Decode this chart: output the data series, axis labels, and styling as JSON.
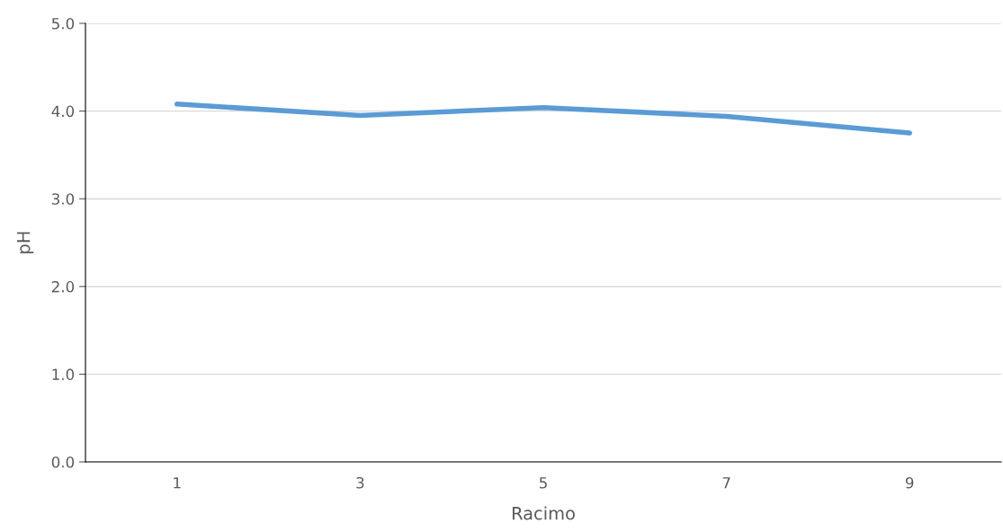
{
  "chart_data": {
    "type": "line",
    "xlabel": "Racimo",
    "ylabel": "pH",
    "categories": [
      "1",
      "3",
      "5",
      "7",
      "9"
    ],
    "series": [
      {
        "color": "#5b9bd5",
        "values": [
          4.08,
          3.95,
          4.04,
          3.94,
          3.75
        ]
      }
    ],
    "ylim": [
      0,
      5
    ],
    "yticks": [
      {
        "value": 0,
        "label": "0.0"
      },
      {
        "value": 1,
        "label": "1.0"
      },
      {
        "value": 2,
        "label": "2.0"
      },
      {
        "value": 3,
        "label": "3.0"
      },
      {
        "value": 4,
        "label": "4.0"
      },
      {
        "value": 5,
        "label": "5.0"
      }
    ],
    "grid": "y",
    "marker": "none",
    "line_style": "solid"
  }
}
